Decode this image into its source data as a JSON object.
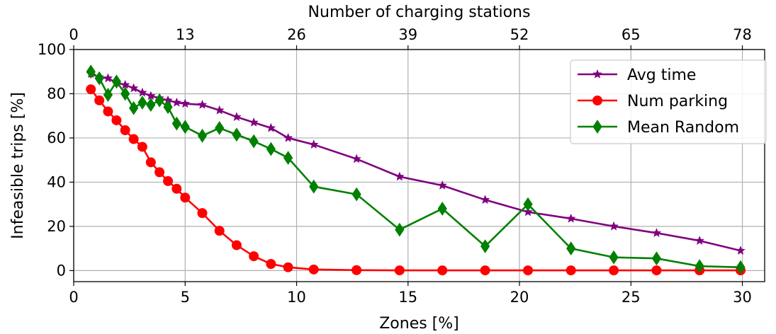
{
  "chart_data": {
    "type": "line",
    "xlabel": "Zones [%]",
    "ylabel": "Infeasible trips [%]",
    "top_xlabel": "Number of charging stations",
    "xlim": [
      0,
      31
    ],
    "ylim": [
      -5,
      100
    ],
    "xticks": [
      0,
      5,
      10,
      15,
      20,
      25,
      30
    ],
    "yticks": [
      0,
      20,
      40,
      60,
      80,
      100
    ],
    "top_xticks": [
      "0",
      "13",
      "26",
      "39",
      "52",
      "65",
      "78"
    ],
    "grid": true,
    "legend_position": "top-right",
    "series": [
      {
        "name": "Avg time",
        "color": "#800080",
        "marker": "star",
        "x": [
          0.77,
          1.15,
          1.54,
          1.92,
          2.31,
          2.69,
          3.08,
          3.46,
          3.85,
          4.23,
          4.62,
          5.0,
          5.77,
          6.54,
          7.31,
          8.08,
          8.85,
          9.62,
          10.77,
          12.69,
          14.62,
          16.54,
          18.46,
          20.38,
          22.31,
          24.23,
          26.15,
          28.08,
          29.92
        ],
        "y": [
          89,
          87.5,
          87,
          85,
          84,
          82.5,
          80.5,
          79,
          78,
          77,
          76,
          75.5,
          75,
          72.5,
          69.5,
          67,
          64.5,
          60,
          57,
          50.5,
          42.5,
          38.5,
          32,
          26.5,
          23.5,
          20,
          17,
          13.5,
          9
        ]
      },
      {
        "name": "Num parking",
        "color": "#ff0000",
        "marker": "circle",
        "x": [
          0.77,
          1.15,
          1.54,
          1.92,
          2.31,
          2.69,
          3.08,
          3.46,
          3.85,
          4.23,
          4.62,
          5.0,
          5.77,
          6.54,
          7.31,
          8.08,
          8.85,
          9.62,
          10.77,
          12.69,
          14.62,
          16.54,
          18.46,
          20.38,
          22.31,
          24.23,
          26.15,
          28.08,
          29.92
        ],
        "y": [
          82,
          77,
          72,
          68,
          63.5,
          59.5,
          56,
          49,
          44.5,
          40.5,
          37,
          33,
          26,
          18,
          11.5,
          6.5,
          3,
          1.5,
          0.5,
          0.2,
          0.1,
          0.1,
          0.1,
          0.1,
          0.1,
          0.1,
          0.1,
          0.1,
          0.1
        ]
      },
      {
        "name": "Mean Random",
        "color": "#008000",
        "marker": "diamond",
        "x": [
          0.77,
          1.15,
          1.54,
          1.92,
          2.31,
          2.69,
          3.08,
          3.46,
          3.85,
          4.23,
          4.62,
          5.0,
          5.77,
          6.54,
          7.31,
          8.08,
          8.85,
          9.62,
          10.77,
          12.69,
          14.62,
          16.54,
          18.46,
          20.38,
          22.31,
          24.23,
          26.15,
          28.08,
          29.92
        ],
        "y": [
          90,
          87,
          79.5,
          85.5,
          80,
          73.5,
          76,
          75,
          77,
          74,
          66.5,
          65,
          61,
          64.5,
          61.5,
          58.5,
          55,
          51,
          38,
          34.5,
          18.5,
          28,
          11,
          30,
          10,
          6,
          5.5,
          2,
          1.5
        ]
      }
    ]
  }
}
